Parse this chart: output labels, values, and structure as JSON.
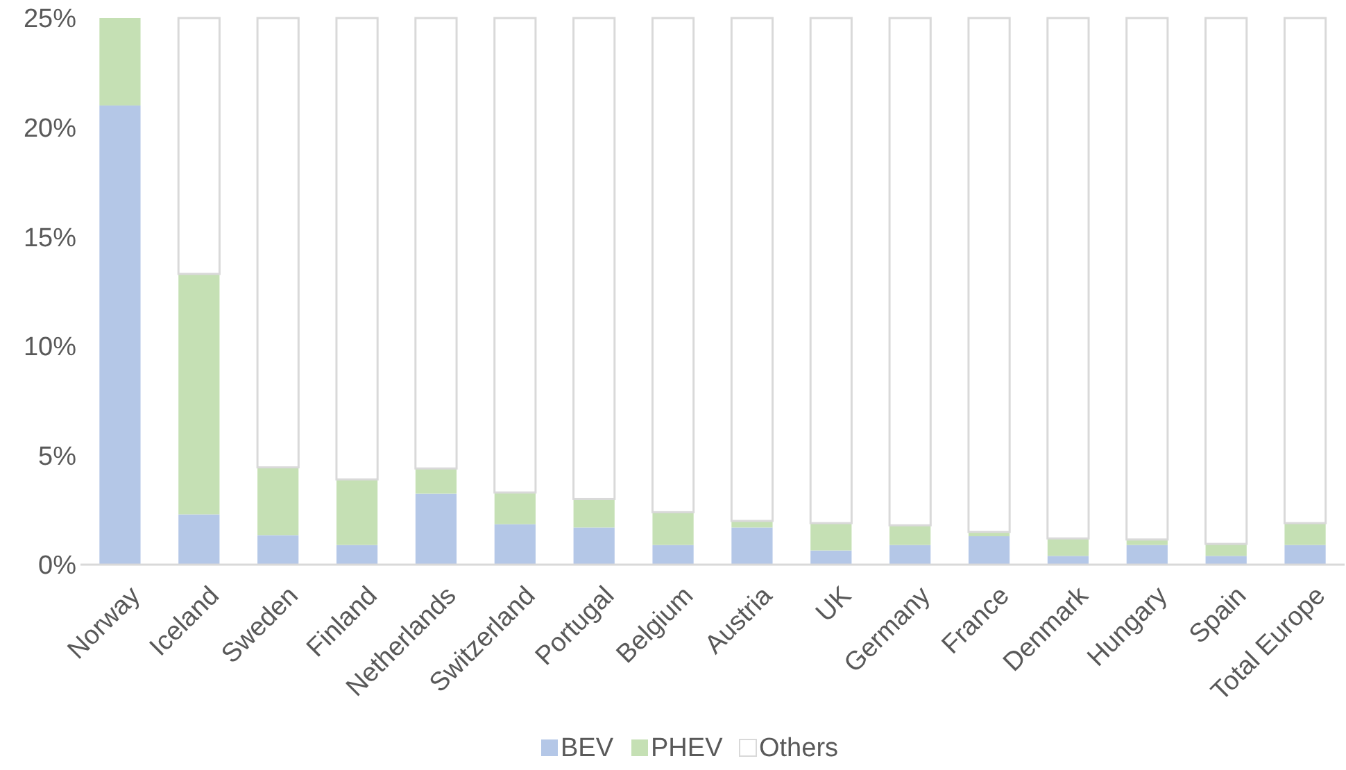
{
  "chart_data": {
    "type": "bar",
    "stacked": true,
    "categories": [
      "Norway",
      "Iceland",
      "Sweden",
      "Finland",
      "Netherlands",
      "Switzerland",
      "Portugal",
      "Belgium",
      "Austria",
      "UK",
      "Germany",
      "France",
      "Denmark",
      "Hungary",
      "Spain",
      "Total Europe"
    ],
    "series": [
      {
        "name": "BEV",
        "color": "#b4c7e7",
        "values": [
          21,
          2.3,
          1.35,
          0.9,
          3.25,
          1.85,
          1.7,
          0.9,
          1.7,
          0.65,
          0.9,
          1.3,
          0.4,
          0.9,
          0.4,
          0.9
        ]
      },
      {
        "name": "PHEV",
        "color": "#c5e0b4",
        "values": [
          4,
          11,
          3.1,
          3,
          1.15,
          1.45,
          1.3,
          1.5,
          0.3,
          1.25,
          0.9,
          0.2,
          0.8,
          0.25,
          0.55,
          1
        ]
      },
      {
        "name": "Others",
        "color": "#ffffff",
        "values": [
          0,
          11.7,
          20.55,
          21.1,
          20.6,
          21.7,
          22,
          22.6,
          23,
          23.1,
          23.2,
          23.5,
          23.8,
          23.85,
          24.05,
          23.1
        ]
      }
    ],
    "ylim": [
      0,
      25
    ],
    "yticks": [
      {
        "value": 0,
        "label": "0%"
      },
      {
        "value": 5,
        "label": "5%"
      },
      {
        "value": 10,
        "label": "10%"
      },
      {
        "value": 15,
        "label": "15%"
      },
      {
        "value": 20,
        "label": "20%"
      },
      {
        "value": 25,
        "label": "25%"
      }
    ],
    "grid": false,
    "legend": "bottom"
  }
}
